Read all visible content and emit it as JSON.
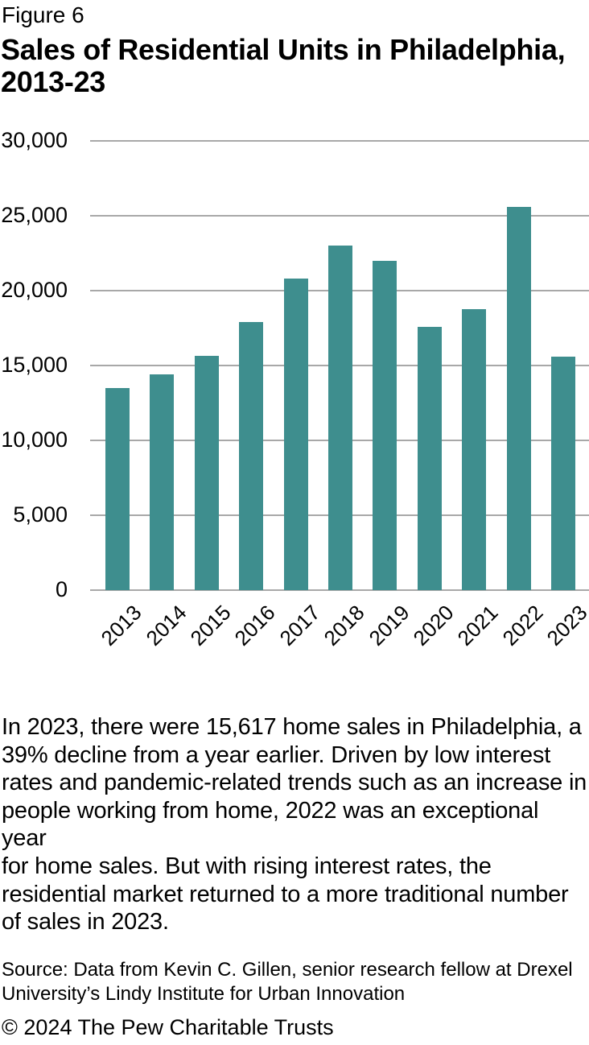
{
  "figure": {
    "label": "Figure 6"
  },
  "title_lines": [
    "Sales of Residential Units in Philadelphia,",
    "2013-23"
  ],
  "chart_data": {
    "type": "bar",
    "title": "Sales of Residential Units in Philadelphia, 2013-23",
    "categories": [
      "2013",
      "2014",
      "2015",
      "2016",
      "2017",
      "2018",
      "2019",
      "2020",
      "2021",
      "2022",
      "2023"
    ],
    "values": [
      13500,
      14400,
      15650,
      17900,
      20800,
      23000,
      22000,
      17600,
      18750,
      25600,
      15617
    ],
    "xlabel": "",
    "ylabel": "",
    "ylim": [
      0,
      30000
    ],
    "yticks": [
      0,
      5000,
      10000,
      15000,
      20000,
      25000,
      30000
    ],
    "ytick_labels": [
      "0",
      "5,000",
      "10,000",
      "15,000",
      "20,000",
      "25,000",
      "30,000"
    ],
    "grid": true,
    "legend_position": "none",
    "bar_color": "#3E8E8E",
    "gridline_color": "#A8A8A8",
    "tick_label_color": "#000000",
    "x_tick_rotation_deg": -45
  },
  "body": {
    "lines": [
      "In 2023, there were 15,617 home sales in Philadelphia, a",
      "39% decline from a year earlier. Driven by low interest",
      "rates and pandemic-related trends such as an increase in",
      "people working from home, 2022 was an exceptional year",
      "for home sales. But with rising interest rates, the",
      "residential market returned to a more traditional number",
      "of sales in 2023."
    ]
  },
  "source": {
    "lines": [
      "Source: Data from Kevin C. Gillen, senior research fellow at Drexel",
      "University’s Lindy Institute for Urban Innovation"
    ]
  },
  "copyright": {
    "text": "© 2024 The Pew Charitable Trusts"
  }
}
